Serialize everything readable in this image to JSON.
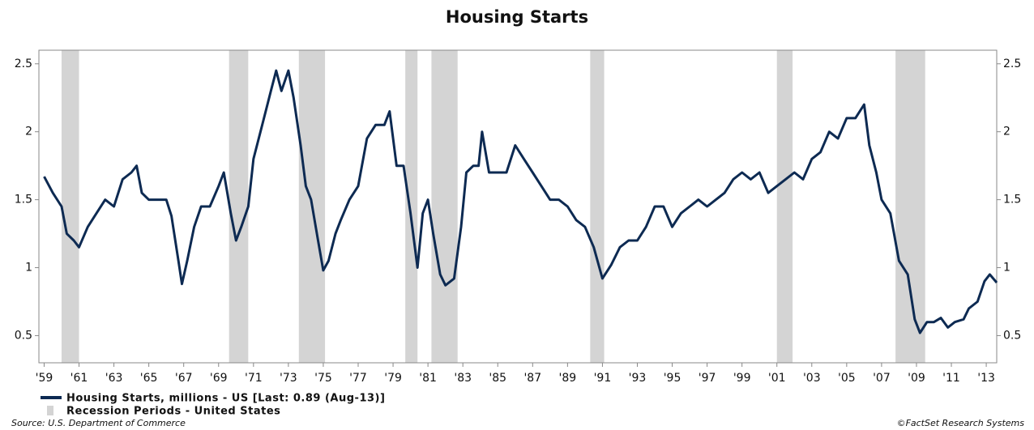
{
  "chart_data": {
    "type": "line",
    "title": "Housing Starts",
    "xlim": [
      1958.7,
      2013.6
    ],
    "ylim": [
      0.3,
      2.6
    ],
    "yticks": [
      0.5,
      1,
      1.5,
      2,
      2.5
    ],
    "xticks": [
      {
        "value": 1959,
        "label": "'59"
      },
      {
        "value": 1961,
        "label": "'61"
      },
      {
        "value": 1963,
        "label": "'63"
      },
      {
        "value": 1965,
        "label": "'65"
      },
      {
        "value": 1967,
        "label": "'67"
      },
      {
        "value": 1969,
        "label": "'69"
      },
      {
        "value": 1971,
        "label": "'71"
      },
      {
        "value": 1973,
        "label": "'73"
      },
      {
        "value": 1975,
        "label": "'75"
      },
      {
        "value": 1977,
        "label": "'77"
      },
      {
        "value": 1979,
        "label": "'79"
      },
      {
        "value": 1981,
        "label": "'81"
      },
      {
        "value": 1983,
        "label": "'83"
      },
      {
        "value": 1985,
        "label": "'85"
      },
      {
        "value": 1987,
        "label": "'87"
      },
      {
        "value": 1989,
        "label": "'89"
      },
      {
        "value": 1991,
        "label": "'91"
      },
      {
        "value": 1993,
        "label": "'93"
      },
      {
        "value": 1995,
        "label": "'95"
      },
      {
        "value": 1997,
        "label": "'97"
      },
      {
        "value": 1999,
        "label": "'99"
      },
      {
        "value": 2001,
        "label": "'01"
      },
      {
        "value": 2003,
        "label": "'03"
      },
      {
        "value": 2005,
        "label": "'05"
      },
      {
        "value": 2007,
        "label": "'07"
      },
      {
        "value": 2009,
        "label": "'09"
      },
      {
        "value": 2011,
        "label": "'11"
      },
      {
        "value": 2013,
        "label": "'13"
      }
    ],
    "x": [
      1959.0,
      1959.5,
      1960.0,
      1960.3,
      1960.7,
      1961.0,
      1961.5,
      1962.0,
      1962.5,
      1963.0,
      1963.5,
      1964.0,
      1964.3,
      1964.6,
      1965.0,
      1965.5,
      1966.0,
      1966.3,
      1966.7,
      1966.9,
      1967.2,
      1967.6,
      1968.0,
      1968.5,
      1969.0,
      1969.3,
      1969.7,
      1970.0,
      1970.3,
      1970.7,
      1971.0,
      1971.5,
      1972.0,
      1972.3,
      1972.6,
      1973.0,
      1973.3,
      1973.7,
      1974.0,
      1974.3,
      1974.7,
      1975.0,
      1975.3,
      1975.7,
      1976.0,
      1976.5,
      1977.0,
      1977.5,
      1978.0,
      1978.5,
      1978.8,
      1979.2,
      1979.6,
      1980.0,
      1980.4,
      1980.7,
      1981.0,
      1981.3,
      1981.7,
      1982.0,
      1982.5,
      1982.9,
      1983.2,
      1983.6,
      1983.9,
      1984.1,
      1984.5,
      1985.0,
      1985.5,
      1986.0,
      1986.5,
      1987.0,
      1987.5,
      1988.0,
      1988.5,
      1989.0,
      1989.5,
      1990.0,
      1990.5,
      1991.0,
      1991.5,
      1992.0,
      1992.5,
      1993.0,
      1993.5,
      1994.0,
      1994.5,
      1995.0,
      1995.5,
      1996.0,
      1996.5,
      1997.0,
      1997.5,
      1998.0,
      1998.5,
      1999.0,
      1999.5,
      2000.0,
      2000.5,
      2001.0,
      2001.5,
      2002.0,
      2002.5,
      2003.0,
      2003.5,
      2004.0,
      2004.5,
      2005.0,
      2005.5,
      2006.0,
      2006.3,
      2006.7,
      2007.0,
      2007.5,
      2008.0,
      2008.5,
      2008.9,
      2009.2,
      2009.6,
      2010.0,
      2010.4,
      2010.8,
      2011.2,
      2011.7,
      2012.0,
      2012.5,
      2012.9,
      2013.2,
      2013.6
    ],
    "series": [
      {
        "name": "Housing Starts, millions - US [Last: 0.89 (Aug-13)]",
        "color": "#0d2a52",
        "values": [
          1.67,
          1.55,
          1.45,
          1.25,
          1.2,
          1.15,
          1.3,
          1.4,
          1.5,
          1.45,
          1.65,
          1.7,
          1.75,
          1.55,
          1.5,
          1.5,
          1.5,
          1.38,
          1.05,
          0.88,
          1.05,
          1.3,
          1.45,
          1.45,
          1.6,
          1.7,
          1.4,
          1.2,
          1.3,
          1.45,
          1.8,
          2.05,
          2.3,
          2.45,
          2.3,
          2.45,
          2.25,
          1.9,
          1.6,
          1.5,
          1.2,
          0.98,
          1.05,
          1.25,
          1.35,
          1.5,
          1.6,
          1.95,
          2.05,
          2.05,
          2.15,
          1.75,
          1.75,
          1.4,
          1.0,
          1.4,
          1.5,
          1.25,
          0.95,
          0.87,
          0.92,
          1.3,
          1.7,
          1.75,
          1.75,
          2.0,
          1.7,
          1.7,
          1.7,
          1.9,
          1.8,
          1.7,
          1.6,
          1.5,
          1.5,
          1.45,
          1.35,
          1.3,
          1.15,
          0.92,
          1.02,
          1.15,
          1.2,
          1.2,
          1.3,
          1.45,
          1.45,
          1.3,
          1.4,
          1.45,
          1.5,
          1.45,
          1.5,
          1.55,
          1.65,
          1.7,
          1.65,
          1.7,
          1.55,
          1.6,
          1.65,
          1.7,
          1.65,
          1.8,
          1.85,
          2.0,
          1.95,
          2.1,
          2.1,
          2.2,
          1.9,
          1.7,
          1.5,
          1.4,
          1.05,
          0.95,
          0.62,
          0.52,
          0.6,
          0.6,
          0.63,
          0.56,
          0.6,
          0.62,
          0.7,
          0.75,
          0.9,
          0.95,
          0.89
        ]
      }
    ],
    "recessions": {
      "name": "Recession Periods - United States",
      "color": "#d4d4d4",
      "periods": [
        [
          1960.0,
          1961.0
        ],
        [
          1969.6,
          1970.7
        ],
        [
          1973.6,
          1975.1
        ],
        [
          1979.7,
          1980.4
        ],
        [
          1981.2,
          1982.7
        ],
        [
          1990.3,
          1991.1
        ],
        [
          2001.0,
          2001.9
        ],
        [
          2007.8,
          2009.5
        ]
      ]
    },
    "source": "Source: U.S. Department of Commerce",
    "credit": "©FactSet Research Systems"
  }
}
